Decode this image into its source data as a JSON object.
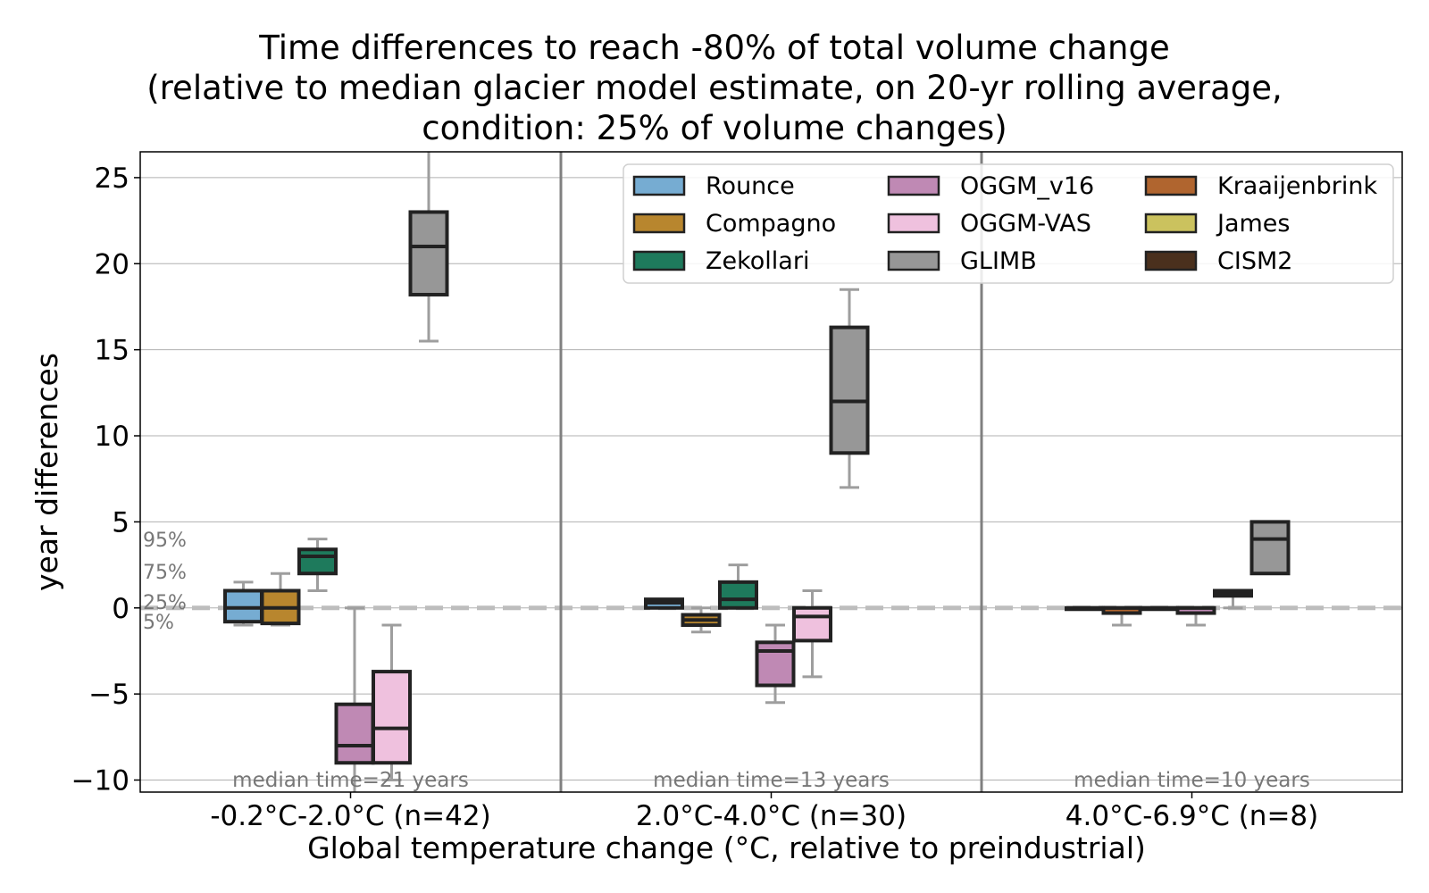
{
  "chart_data": {
    "type": "box",
    "title_lines": [
      "Time differences to reach -80% of total volume change",
      "(relative to median glacier model estimate, on 20-yr rolling average,",
      "condition: 25% of volume changes)"
    ],
    "xlabel": "Global temperature change (°C, relative to preindustrial)",
    "ylabel": "year differences",
    "ylim": [
      -10.7,
      26.5
    ],
    "yticks": [
      -10,
      -5,
      0,
      5,
      10,
      15,
      20,
      25
    ],
    "ytick_labels": [
      "−10",
      "−5",
      "0",
      "5",
      "10",
      "15",
      "20",
      "25"
    ],
    "grid": true,
    "reference_line": 0,
    "percentile_labels": [
      "95%",
      "75%",
      "25%",
      "5%"
    ],
    "legend_position": "upper right",
    "models": [
      {
        "name": "Rounce",
        "color": "#76acd2"
      },
      {
        "name": "Compagno",
        "color": "#b8862e"
      },
      {
        "name": "Zekollari",
        "color": "#1e7a5c"
      },
      {
        "name": "OGGM_v16",
        "color": "#bf89b4"
      },
      {
        "name": "OGGM-VAS",
        "color": "#efc1de"
      },
      {
        "name": "GLIMB",
        "color": "#979797"
      },
      {
        "name": "Kraaijenbrink",
        "color": "#b0652f"
      },
      {
        "name": "James",
        "color": "#cbc25e"
      },
      {
        "name": "CISM2",
        "color": "#4a301d"
      }
    ],
    "groups": [
      {
        "label": "-0.2°C-2.0°C (n=42)",
        "median_note": "median time=21 years",
        "boxes": [
          {
            "model": "Rounce",
            "p5": -1,
            "q1": -0.8,
            "median": 0,
            "q3": 1,
            "p95": 1.5
          },
          {
            "model": "Compagno",
            "p5": -1,
            "q1": -0.9,
            "median": 0,
            "q3": 1,
            "p95": 2
          },
          {
            "model": "Zekollari",
            "p5": 1,
            "q1": 2,
            "median": 3,
            "q3": 3.4,
            "p95": 4
          },
          {
            "model": "OGGM_v16",
            "p5": -12,
            "q1": -9,
            "median": -8,
            "q3": -5.6,
            "p95": 0
          },
          {
            "model": "OGGM-VAS",
            "p5": -10,
            "q1": -9,
            "median": -7,
            "q3": -3.7,
            "p95": -1
          },
          {
            "model": "GLIMB",
            "p5": 15.5,
            "q1": 18.2,
            "median": 21,
            "q3": 23,
            "p95": 28
          }
        ]
      },
      {
        "label": "2.0°C-4.0°C (n=30)",
        "median_note": "median time=13 years",
        "boxes": [
          {
            "model": "Rounce",
            "p5": 0,
            "q1": 0,
            "median": 0.3,
            "q3": 0.5,
            "p95": 0.5
          },
          {
            "model": "Compagno",
            "p5": -1.4,
            "q1": -1,
            "median": -0.7,
            "q3": -0.4,
            "p95": 0
          },
          {
            "model": "Zekollari",
            "p5": 0,
            "q1": 0,
            "median": 0.5,
            "q3": 1.5,
            "p95": 2.5
          },
          {
            "model": "OGGM_v16",
            "p5": -5.5,
            "q1": -4.5,
            "median": -2.5,
            "q3": -2,
            "p95": -1
          },
          {
            "model": "OGGM-VAS",
            "p5": -4,
            "q1": -1.9,
            "median": -0.5,
            "q3": 0,
            "p95": 1
          },
          {
            "model": "GLIMB",
            "p5": 7,
            "q1": 9,
            "median": 12,
            "q3": 16.3,
            "p95": 18.5
          }
        ]
      },
      {
        "label": "4.0°C-6.9°C (n=8)",
        "median_note": "median time=10 years",
        "boxes": [
          {
            "model": "Compagno",
            "p5": 0,
            "q1": 0,
            "median": 0,
            "q3": 0,
            "p95": 0
          },
          {
            "model": "Kraaijenbrink",
            "p5": -1,
            "q1": -0.3,
            "median": 0,
            "q3": 0,
            "p95": 0
          },
          {
            "model": "James",
            "p5": 0,
            "q1": 0,
            "median": 0,
            "q3": 0,
            "p95": 0
          },
          {
            "model": "OGGM_v16",
            "p5": -1,
            "q1": -0.3,
            "median": 0,
            "q3": 0,
            "p95": 0
          },
          {
            "model": "CISM2",
            "p5": 0,
            "q1": 0.7,
            "median": 0.8,
            "q3": 1,
            "p95": 1
          },
          {
            "model": "GLIMB",
            "p5": 2,
            "q1": 2,
            "median": 4,
            "q3": 5,
            "p95": 5
          }
        ]
      }
    ]
  }
}
